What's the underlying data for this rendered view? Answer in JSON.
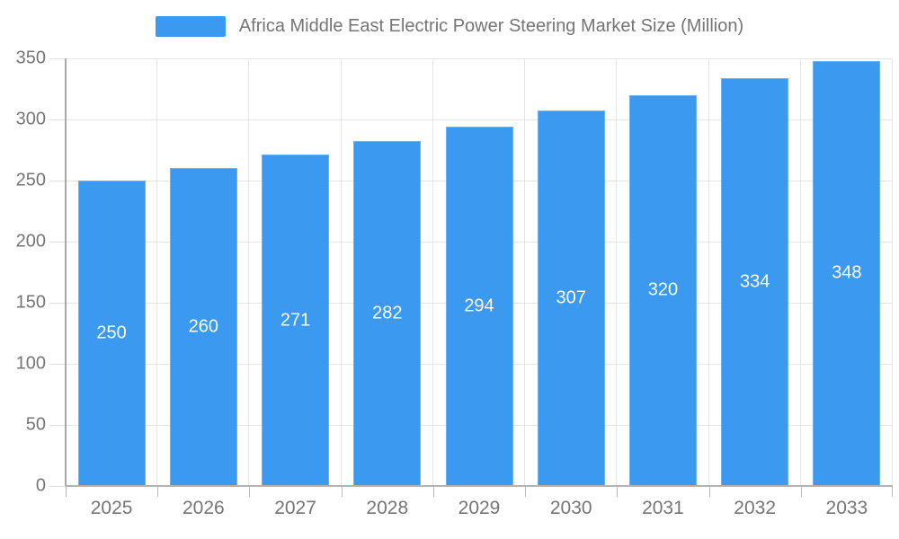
{
  "legend": {
    "label": "Africa Middle East Electric Power Steering Market Size (Million)"
  },
  "chart_data": {
    "type": "bar",
    "title": "Africa Middle East Electric Power Steering Market Size (Million)",
    "categories": [
      "2025",
      "2026",
      "2027",
      "2028",
      "2029",
      "2030",
      "2031",
      "2032",
      "2033"
    ],
    "values": [
      250,
      260,
      271,
      282,
      294,
      307,
      320,
      334,
      348
    ],
    "xlabel": "",
    "ylabel": "",
    "ylim": [
      0,
      350
    ],
    "yticks": [
      0,
      50,
      100,
      150,
      200,
      250,
      300,
      350
    ],
    "grid": true,
    "legend_position": "top-center",
    "bar_color": "#3b99f0",
    "bar_label_color": "#ffffff",
    "axis_text_color": "#757575",
    "gridline_color": "#e6e6e6"
  }
}
